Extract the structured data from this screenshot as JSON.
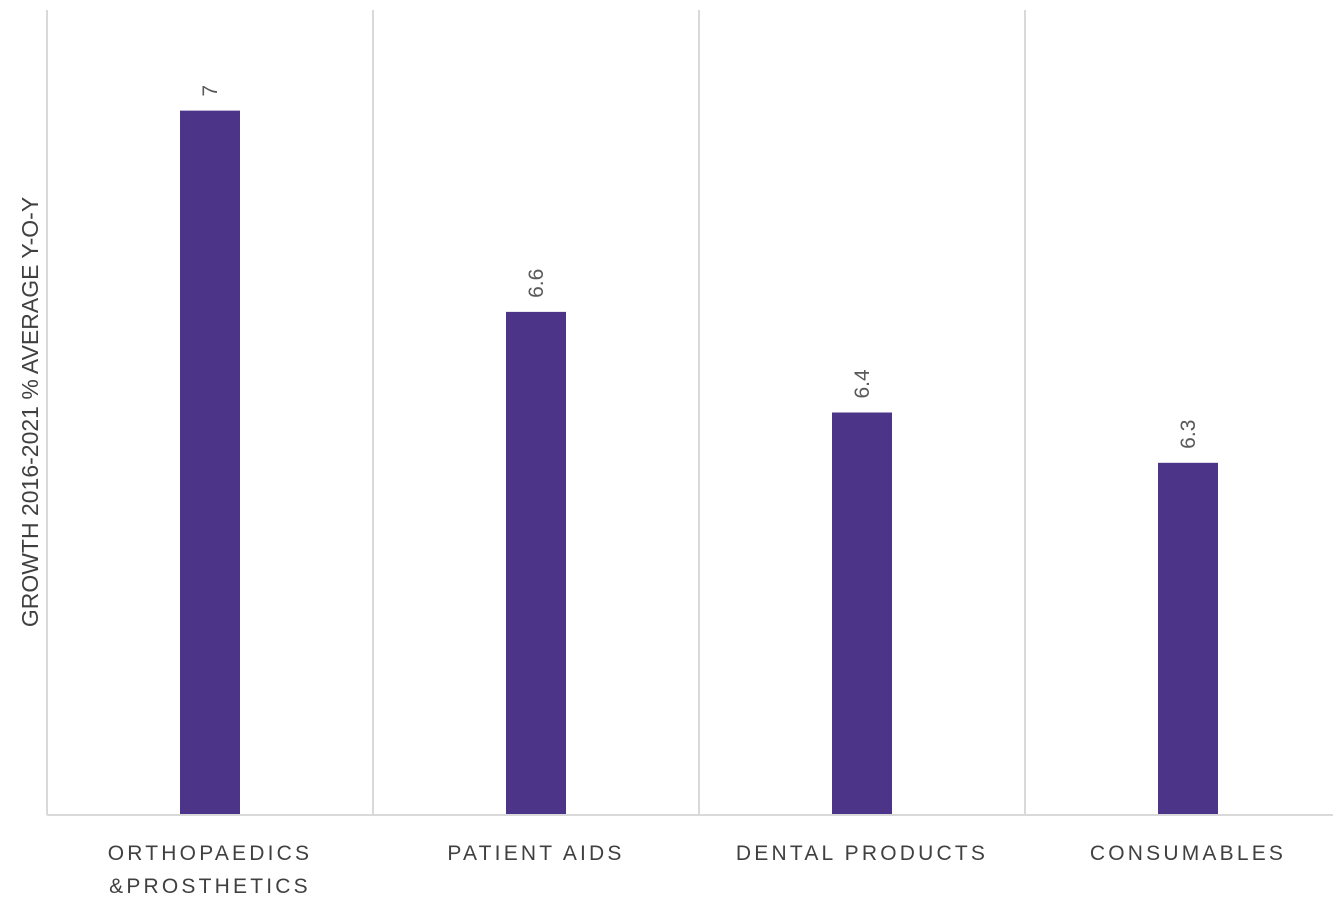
{
  "chart_data": {
    "type": "bar",
    "title": "",
    "xlabel": "",
    "ylabel": "GROWTH 2016-2021 % AVERAGE Y-O-Y",
    "categories": [
      [
        "ORTHOPAEDICS",
        "&PROSTHETICS"
      ],
      [
        "PATIENT AIDS"
      ],
      [
        "DENTAL PRODUCTS"
      ],
      [
        "CONSUMABLES"
      ]
    ],
    "values": [
      7,
      6.6,
      6.4,
      6.3
    ],
    "data_labels": [
      "7",
      "6.6",
      "6.4",
      "6.3"
    ],
    "ylim": [
      5.6,
      7.2
    ],
    "grid": "vertical category separators",
    "legend": "none",
    "colors": {
      "bar": "#4c3589",
      "grid": "#d9d9d9",
      "axis": "#d9d9d9"
    }
  }
}
